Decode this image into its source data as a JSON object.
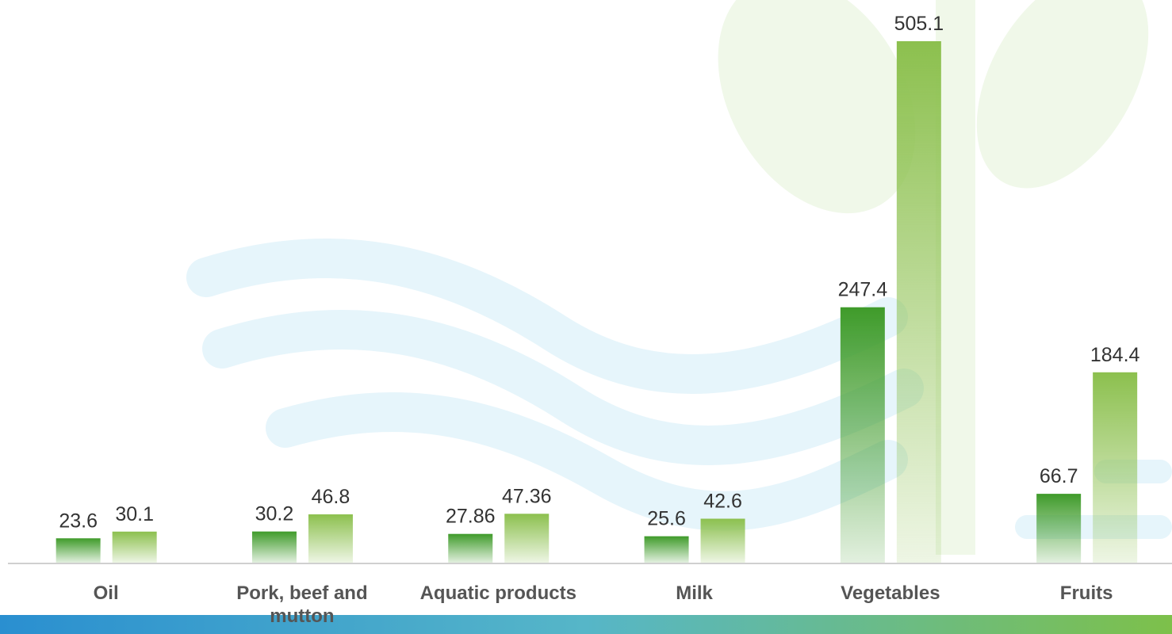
{
  "chart_data": {
    "type": "bar",
    "categories": [
      "Oil",
      "Pork, beef and mutton",
      "Aquatic products",
      "Milk",
      "Vegetables",
      "Fruits"
    ],
    "series": [
      {
        "color": "#3f9b2a",
        "values": [
          23.6,
          30.2,
          27.86,
          25.6,
          247.4,
          66.7
        ]
      },
      {
        "color": "#8cc04e",
        "values": [
          30.1,
          46.8,
          47.36,
          42.6,
          505.1,
          184.4
        ]
      }
    ]
  }
}
